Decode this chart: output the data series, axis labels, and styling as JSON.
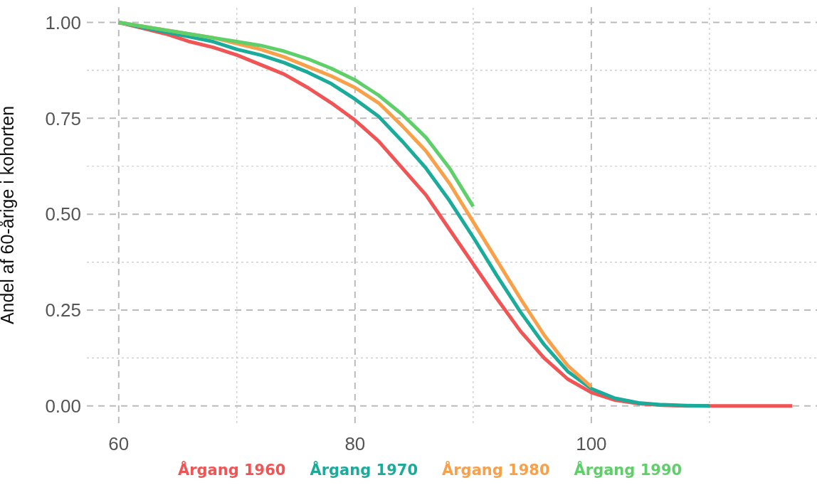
{
  "chart_data": {
    "type": "line",
    "ylabel": "Andel af 60-årige i kohorten",
    "xlim": [
      57.3,
      119.1
    ],
    "ylim": [
      -0.045,
      1.04
    ],
    "xticks": [
      60,
      {
        "value": 70,
        "label": null
      },
      80,
      {
        "value": 90,
        "label": null
      },
      100,
      {
        "value": 110,
        "label": null
      }
    ],
    "yticks": [
      {
        "value": 0,
        "label": "0.00"
      },
      {
        "value": 0.125,
        "label": null
      },
      {
        "value": 0.25,
        "label": "0.25"
      },
      {
        "value": 0.375,
        "label": null
      },
      {
        "value": 0.5,
        "label": "0.50"
      },
      {
        "value": 0.625,
        "label": null
      },
      {
        "value": 0.75,
        "label": "0.75"
      },
      {
        "value": 0.875,
        "label": null
      },
      {
        "value": 1,
        "label": "1.00"
      }
    ],
    "grid": true,
    "legend": "bottom",
    "marker": "none",
    "line_style": "solid",
    "series": [
      {
        "name": "Årgang 1960",
        "color": "#f05454",
        "x": [
          60,
          62,
          64,
          66,
          68,
          70,
          72,
          74,
          76,
          78,
          80,
          82,
          84,
          86,
          88,
          90,
          92,
          94,
          96,
          98,
          100,
          102,
          104,
          106,
          108,
          110,
          117
        ],
        "values": [
          1,
          0.985,
          0.97,
          0.95,
          0.935,
          0.915,
          0.89,
          0.865,
          0.83,
          0.79,
          0.745,
          0.69,
          0.62,
          0.55,
          0.46,
          0.37,
          0.28,
          0.195,
          0.125,
          0.07,
          0.035,
          0.015,
          0.006,
          0.002,
          0,
          0,
          0
        ]
      },
      {
        "name": "Årgang 1970",
        "color": "#1aab9b",
        "x": [
          60,
          64,
          68,
          70,
          72,
          74,
          76,
          78,
          80,
          82,
          84,
          86,
          88,
          90,
          92,
          94,
          96,
          98,
          100,
          102,
          104,
          106,
          108,
          110
        ],
        "values": [
          1,
          0.975,
          0.95,
          0.93,
          0.915,
          0.895,
          0.87,
          0.84,
          0.8,
          0.755,
          0.69,
          0.62,
          0.535,
          0.44,
          0.34,
          0.245,
          0.16,
          0.09,
          0.045,
          0.02,
          0.008,
          0.003,
          0.001,
          0
        ]
      },
      {
        "name": "Årgang 1980",
        "color": "#f9a04a",
        "x": [
          60,
          64,
          68,
          70,
          72,
          74,
          76,
          78,
          80,
          82,
          84,
          86,
          88,
          90,
          92,
          94,
          96,
          98,
          100
        ],
        "values": [
          1,
          0.98,
          0.96,
          0.945,
          0.93,
          0.91,
          0.885,
          0.86,
          0.83,
          0.79,
          0.73,
          0.665,
          0.58,
          0.48,
          0.38,
          0.28,
          0.185,
          0.105,
          0.05
        ]
      },
      {
        "name": "Årgang 1990",
        "color": "#5fcf69",
        "x": [
          60,
          64,
          68,
          70,
          72,
          74,
          76,
          78,
          80,
          82,
          84,
          86,
          88,
          90
        ],
        "values": [
          1,
          0.98,
          0.96,
          0.95,
          0.94,
          0.925,
          0.905,
          0.88,
          0.85,
          0.81,
          0.76,
          0.7,
          0.62,
          0.52
        ]
      }
    ]
  }
}
